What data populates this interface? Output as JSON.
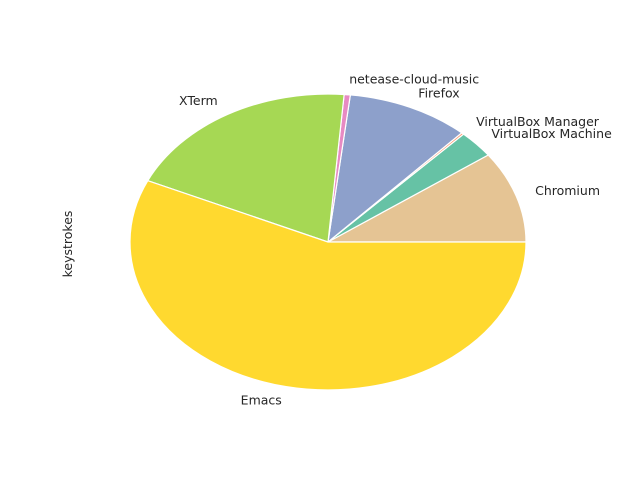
{
  "chart_data": {
    "type": "pie",
    "ylabel": "keystrokes",
    "start_angle_deg": 0,
    "direction": "counterclockwise",
    "slices": [
      {
        "label": "Chromium",
        "value": 10.0,
        "color": "#e5c494"
      },
      {
        "label": "VirtualBox Machine",
        "value": 3.0,
        "color": "#66c2a5"
      },
      {
        "label": "VirtualBox Manager",
        "value": 0.2,
        "color": "#fc8d62"
      },
      {
        "label": "Firefox",
        "value": 10.0,
        "color": "#8da0cb"
      },
      {
        "label": "netease-cloud-music",
        "value": 0.5,
        "color": "#e78ac3"
      },
      {
        "label": "XTerm",
        "value": 19.5,
        "color": "#a6d854"
      },
      {
        "label": "Emacs",
        "value": 56.8,
        "color": "#ffd92f"
      }
    ]
  }
}
